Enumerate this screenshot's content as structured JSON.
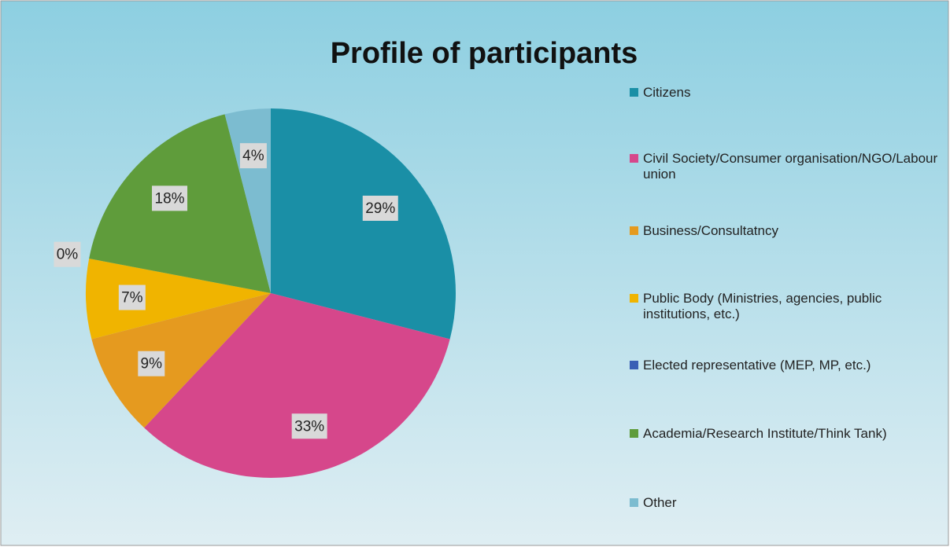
{
  "chart_data": {
    "type": "pie",
    "title": "Profile of participants",
    "categories": [
      "Citizens",
      "Civil Society/Consumer organisation/NGO/Labour union",
      "Business/Consultatncy",
      "Public Body (Ministries, agencies, public institutions, etc.)",
      "Elected representative (MEP, MP, etc.)",
      "Academia/Research Institute/Think Tank)",
      "Other"
    ],
    "values": [
      29,
      33,
      9,
      7,
      0,
      18,
      4
    ],
    "value_labels": [
      "29%",
      "33%",
      "9%",
      "7%",
      "0%",
      "18%",
      "4%"
    ],
    "colors": [
      "#1a8fa6",
      "#d6478b",
      "#e59a1f",
      "#f0b400",
      "#3a5fb5",
      "#5f9c3b",
      "#7cbcd0"
    ],
    "legend": "right"
  }
}
